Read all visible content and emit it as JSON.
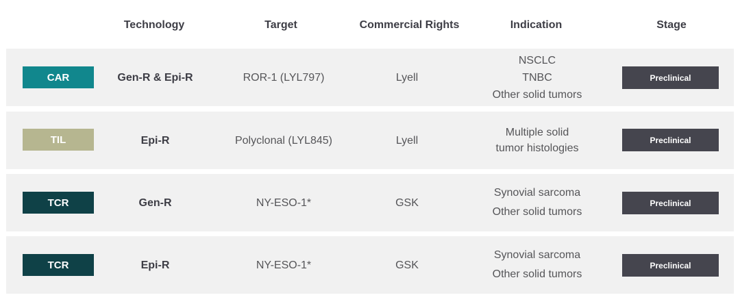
{
  "header": {
    "technology": "Technology",
    "target": "Target",
    "commercial_rights": "Commercial Rights",
    "indication": "Indication",
    "stage": "Stage"
  },
  "colors": {
    "car": "#11878d",
    "til": "#b6b690",
    "tcr": "#0f4147",
    "stage": "#45454e",
    "row_bg": "#f1f1f1"
  },
  "rows": [
    {
      "platform": "CAR",
      "technology": "Gen-R & Epi-R",
      "target": "ROR-1 (LYL797)",
      "rights": "Lyell",
      "indication": [
        "NSCLC",
        "TNBC",
        "Other solid tumors"
      ],
      "stage": "Preclinical"
    },
    {
      "platform": "TIL",
      "technology": "Epi-R",
      "target": "Polyclonal (LYL845)",
      "rights": "Lyell",
      "indication": [
        "Multiple solid",
        "tumor histologies"
      ],
      "stage": "Preclinical"
    },
    {
      "platform": "TCR",
      "technology": "Gen-R",
      "target": "NY-ESO-1*",
      "rights": "GSK",
      "indication": [
        "Synovial sarcoma",
        "Other solid tumors"
      ],
      "stage": "Preclinical"
    },
    {
      "platform": "TCR",
      "technology": "Epi-R",
      "target": "NY-ESO-1*",
      "rights": "GSK",
      "indication": [
        "Synovial sarcoma",
        "Other solid tumors"
      ],
      "stage": "Preclinical"
    }
  ]
}
